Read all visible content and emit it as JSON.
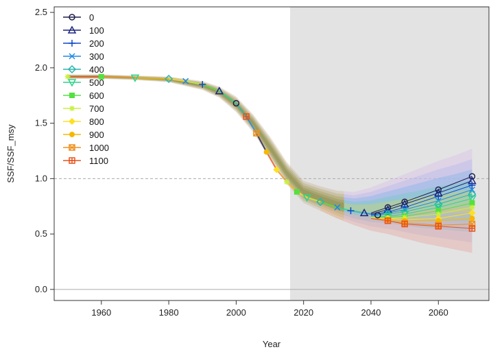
{
  "chart_data": {
    "type": "line",
    "title": "",
    "xlabel": "Year",
    "ylabel": "SSF/SSF_msy",
    "xlim": [
      1946,
      2075
    ],
    "ylim": [
      -0.1,
      2.55
    ],
    "x_ticks": [
      1960,
      1980,
      2000,
      2020,
      2040,
      2060
    ],
    "y_ticks": [
      0.0,
      0.5,
      1.0,
      1.5,
      2.0,
      2.5
    ],
    "y_tick_labels": [
      "0.0",
      "0.5",
      "1.0",
      "1.5",
      "2.0",
      "2.5"
    ],
    "reference_lines": [
      {
        "y": 1.0,
        "style": "dashed",
        "color": "#aaaaaa"
      },
      {
        "y": 0.0,
        "style": "solid",
        "color": "#aaaaaa"
      }
    ],
    "projection_shade": {
      "x_start": 2016,
      "x_end": 2075,
      "color": "#e3e3e3"
    },
    "legend_position": "top-left",
    "historical": {
      "x": [
        1950,
        1960,
        1970,
        1980,
        1985,
        1990,
        1995,
        2000,
        2003,
        2006,
        2009,
        2012,
        2015,
        2018,
        2021,
        2025,
        2030,
        2034,
        2038,
        2042
      ],
      "y": [
        1.92,
        1.92,
        1.91,
        1.9,
        1.88,
        1.85,
        1.79,
        1.68,
        1.56,
        1.41,
        1.24,
        1.08,
        0.97,
        0.88,
        0.83,
        0.79,
        0.74,
        0.71,
        0.69,
        0.67
      ]
    },
    "band": {
      "x": [
        1950,
        1960,
        1970,
        1980,
        1990,
        1995,
        2000,
        2005,
        2010,
        2015,
        2020,
        2025,
        2030,
        2035,
        2040,
        2045,
        2050,
        2055,
        2060,
        2065,
        2070
      ],
      "upper": [
        1.94,
        1.94,
        1.93,
        1.92,
        1.88,
        1.83,
        1.74,
        1.58,
        1.38,
        1.15,
        0.98,
        0.93,
        0.89,
        0.88,
        0.92,
        0.98,
        1.04,
        1.1,
        1.16,
        1.21,
        1.27
      ],
      "lower": [
        1.9,
        1.9,
        1.89,
        1.87,
        1.8,
        1.73,
        1.6,
        1.42,
        1.18,
        0.95,
        0.78,
        0.71,
        0.64,
        0.58,
        0.53,
        0.5,
        0.46,
        0.42,
        0.39,
        0.36,
        0.33
      ]
    },
    "series": [
      {
        "name": "0",
        "color": "#1e1e4a",
        "marker": "circle",
        "x": [
          2040,
          2045,
          2050,
          2060,
          2070
        ],
        "y": [
          0.69,
          0.74,
          0.79,
          0.9,
          1.02
        ]
      },
      {
        "name": "100",
        "color": "#1a237e",
        "marker": "triangle",
        "x": [
          2040,
          2045,
          2050,
          2060,
          2070
        ],
        "y": [
          0.68,
          0.72,
          0.77,
          0.87,
          0.98
        ]
      },
      {
        "name": "200",
        "color": "#0d47c8",
        "marker": "plus",
        "x": [
          2040,
          2045,
          2050,
          2060,
          2070
        ],
        "y": [
          0.67,
          0.7,
          0.74,
          0.84,
          0.94
        ]
      },
      {
        "name": "300",
        "color": "#1e88e5",
        "marker": "x",
        "x": [
          2040,
          2045,
          2050,
          2060,
          2070
        ],
        "y": [
          0.66,
          0.69,
          0.72,
          0.8,
          0.9
        ]
      },
      {
        "name": "400",
        "color": "#26b5b0",
        "marker": "diamond",
        "x": [
          2040,
          2045,
          2050,
          2060,
          2070
        ],
        "y": [
          0.66,
          0.68,
          0.7,
          0.77,
          0.86
        ]
      },
      {
        "name": "500",
        "color": "#2bd48a",
        "marker": "triangle-down",
        "x": [
          2040,
          2045,
          2050,
          2060,
          2070
        ],
        "y": [
          0.65,
          0.66,
          0.68,
          0.74,
          0.82
        ]
      },
      {
        "name": "600",
        "color": "#55e040",
        "marker": "square",
        "x": [
          2040,
          2045,
          2050,
          2060,
          2070
        ],
        "y": [
          0.65,
          0.65,
          0.66,
          0.71,
          0.78
        ]
      },
      {
        "name": "700",
        "color": "#c8f040",
        "marker": "star",
        "x": [
          2040,
          2045,
          2050,
          2060,
          2070
        ],
        "y": [
          0.65,
          0.64,
          0.65,
          0.68,
          0.74
        ]
      },
      {
        "name": "800",
        "color": "#ffe020",
        "marker": "diamond-filled",
        "x": [
          2040,
          2045,
          2050,
          2060,
          2070
        ],
        "y": [
          0.65,
          0.64,
          0.63,
          0.64,
          0.69
        ]
      },
      {
        "name": "900",
        "color": "#f5b800",
        "marker": "circle-filled",
        "x": [
          2040,
          2045,
          2050,
          2060,
          2070
        ],
        "y": [
          0.64,
          0.63,
          0.62,
          0.62,
          0.64
        ]
      },
      {
        "name": "1000",
        "color": "#f0901a",
        "marker": "square-x",
        "x": [
          2040,
          2045,
          2050,
          2060,
          2070
        ],
        "y": [
          0.64,
          0.62,
          0.6,
          0.58,
          0.59
        ]
      },
      {
        "name": "1100",
        "color": "#e8521a",
        "marker": "square-plus",
        "x": [
          2040,
          2045,
          2050,
          2060,
          2070
        ],
        "y": [
          0.64,
          0.62,
          0.59,
          0.57,
          0.55
        ]
      }
    ]
  }
}
